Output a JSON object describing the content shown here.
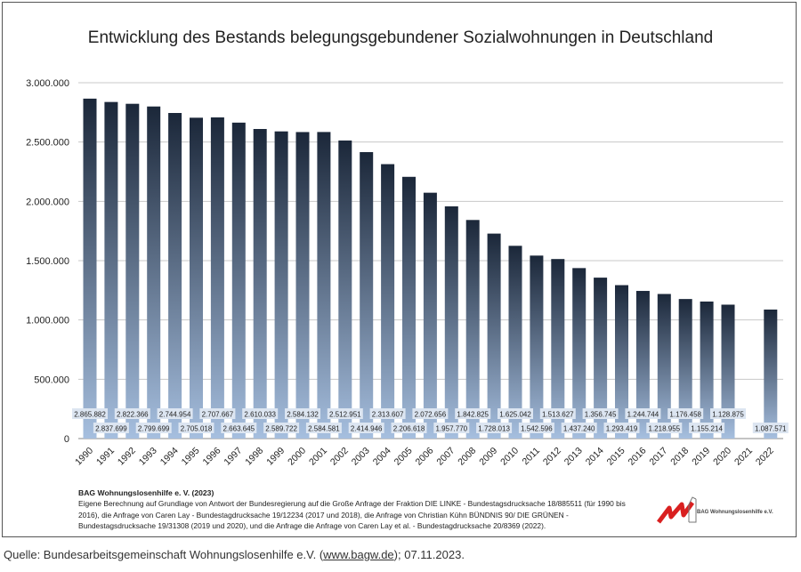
{
  "chart_data": {
    "type": "bar",
    "title": "Entwicklung des Bestands belegungsgebundener Sozialwohnungen in Deutschland",
    "xlabel": "",
    "ylabel": "",
    "ylim": [
      0,
      3000000
    ],
    "grid": true,
    "y_ticks": [
      0,
      500000,
      1000000,
      1500000,
      2000000,
      2500000,
      3000000
    ],
    "y_tick_labels": [
      "0",
      "500.000",
      "1.000.000",
      "1.500.000",
      "2.000.000",
      "2.500.000",
      "3.000.000"
    ],
    "categories": [
      "1990",
      "1991",
      "1992",
      "1993",
      "1994",
      "1995",
      "1996",
      "1997",
      "1998",
      "1999",
      "2000",
      "2001",
      "2002",
      "2003",
      "2004",
      "2005",
      "2006",
      "2007",
      "2008",
      "2009",
      "2010",
      "2011",
      "2012",
      "2013",
      "2014",
      "2015",
      "2016",
      "2017",
      "2018",
      "2019",
      "2020",
      "2021",
      "2022"
    ],
    "values": [
      2865882,
      2837699,
      2822366,
      2799699,
      2744954,
      2705018,
      2707667,
      2663645,
      2610033,
      2589722,
      2584132,
      2584581,
      2512951,
      2414946,
      2313607,
      2206618,
      2072656,
      1957770,
      1842825,
      1728013,
      1625042,
      1542596,
      1513627,
      1437240,
      1356745,
      1293419,
      1244744,
      1218955,
      1176458,
      1155214,
      1128875,
      null,
      1087571
    ],
    "data_labels": [
      "2.865.882",
      "2.837.699",
      "2.822.366",
      "2.799.699",
      "2.744.954",
      "2.705.018",
      "2.707.667",
      "2.663.645",
      "2.610.033",
      "2.589.722",
      "2.584.132",
      "2.584.581",
      "2.512.951",
      "2.414.946",
      "2.313.607",
      "2.206.618",
      "2.072.656",
      "1.957.770",
      "1.842.825",
      "1.728.013",
      "1.625.042",
      "1.542.596",
      "1.513.627",
      "1.437.240",
      "1.356.745",
      "1.293.419",
      "1.244.744",
      "1.218.955",
      "1.176.458",
      "1.155.214",
      "1.128.875",
      null,
      "1.087.571"
    ],
    "colors": {
      "bar_top": "#1b2739",
      "bar_bottom": "#a6bfdf",
      "label_bg": "#dce5f1",
      "grid": "#c8c8c8"
    }
  },
  "footer": {
    "heading": "BAG Wohnungslosenhilfe e. V. (2023)",
    "text": "Eigene Berechnung auf Grundlage von Antwort der Bundesregierung auf die Große Anfrage der Fraktion DIE LINKE  - Bundestagsdrucksache 18/885511 (für 1990 bis 2016), die Anfrage von Caren Lay - Bundestagdrucksache 19/12234  (2017 und 2018), die Anfrage von Christian Kühn BÜNDNIS 90/ DIE GRÜNEN - Bundestagsdrucksache 19/31308 (2019 und 2020), und die Anfrage die Anfrage von Caren Lay et al. - Bundestagdrucksache 20/8369  (2022).",
    "logo_text": "BAG Wohnungslosenhilfe e.V."
  },
  "source": {
    "prefix": "Quelle: Bundesarbeitsgemeinschaft Wohnungslosenhilfe e.V. (",
    "link": "www.bagw.de",
    "suffix": "); 07.11.2023."
  }
}
